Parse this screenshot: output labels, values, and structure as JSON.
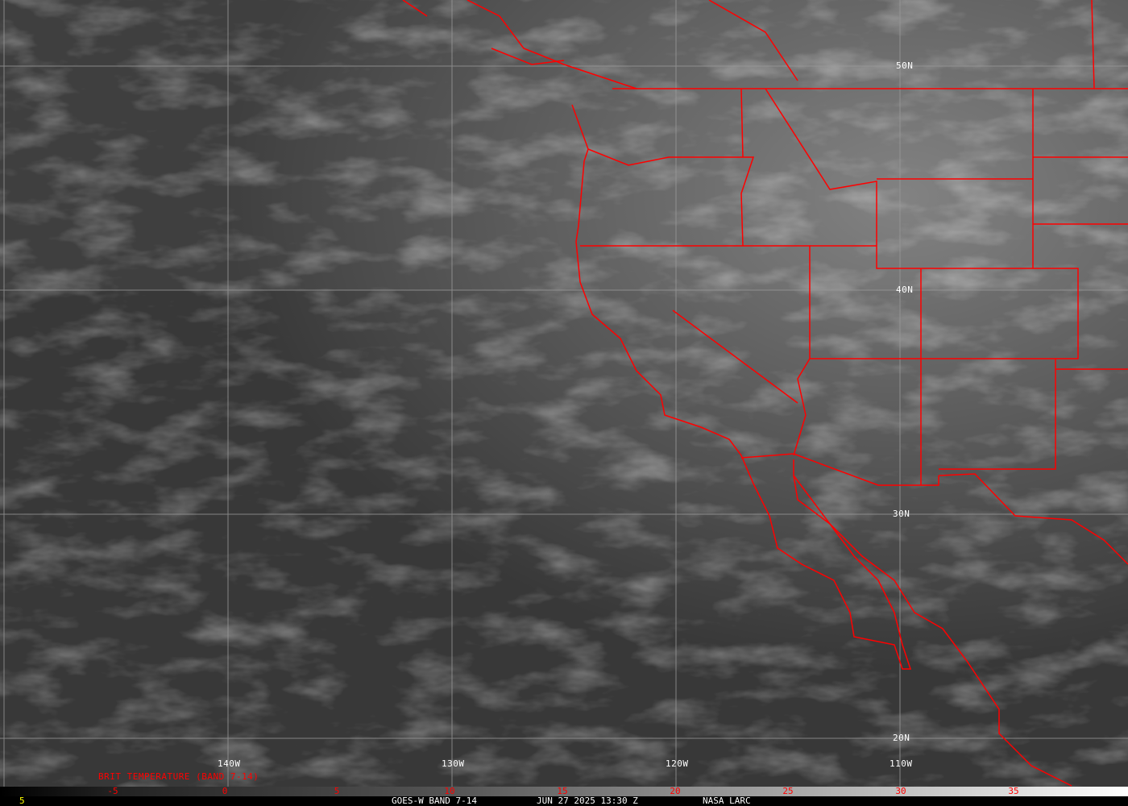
{
  "product": "BRIT TEMPERATURE (BAND 7-14)",
  "lat_labels": [
    "50N",
    "40N",
    "30N",
    "20N"
  ],
  "lon_labels": [
    "140W",
    "130W",
    "120W",
    "110W"
  ],
  "colorbar": {
    "ticks": [
      "-5",
      "0",
      "5",
      "10",
      "15",
      "20",
      "25",
      "30",
      "35"
    ],
    "left_label": "5"
  },
  "footer": {
    "satellite": "GOES-W BAND 7-14",
    "datetime": "JUN 27 2025 13:30 Z",
    "source": "NASA LARC"
  },
  "colors": {
    "boundaries": "#ff0000",
    "grid": "#999999",
    "labels": "#ffffff",
    "colorbar_text": "#ff0000",
    "corner_label": "#ffff00"
  }
}
